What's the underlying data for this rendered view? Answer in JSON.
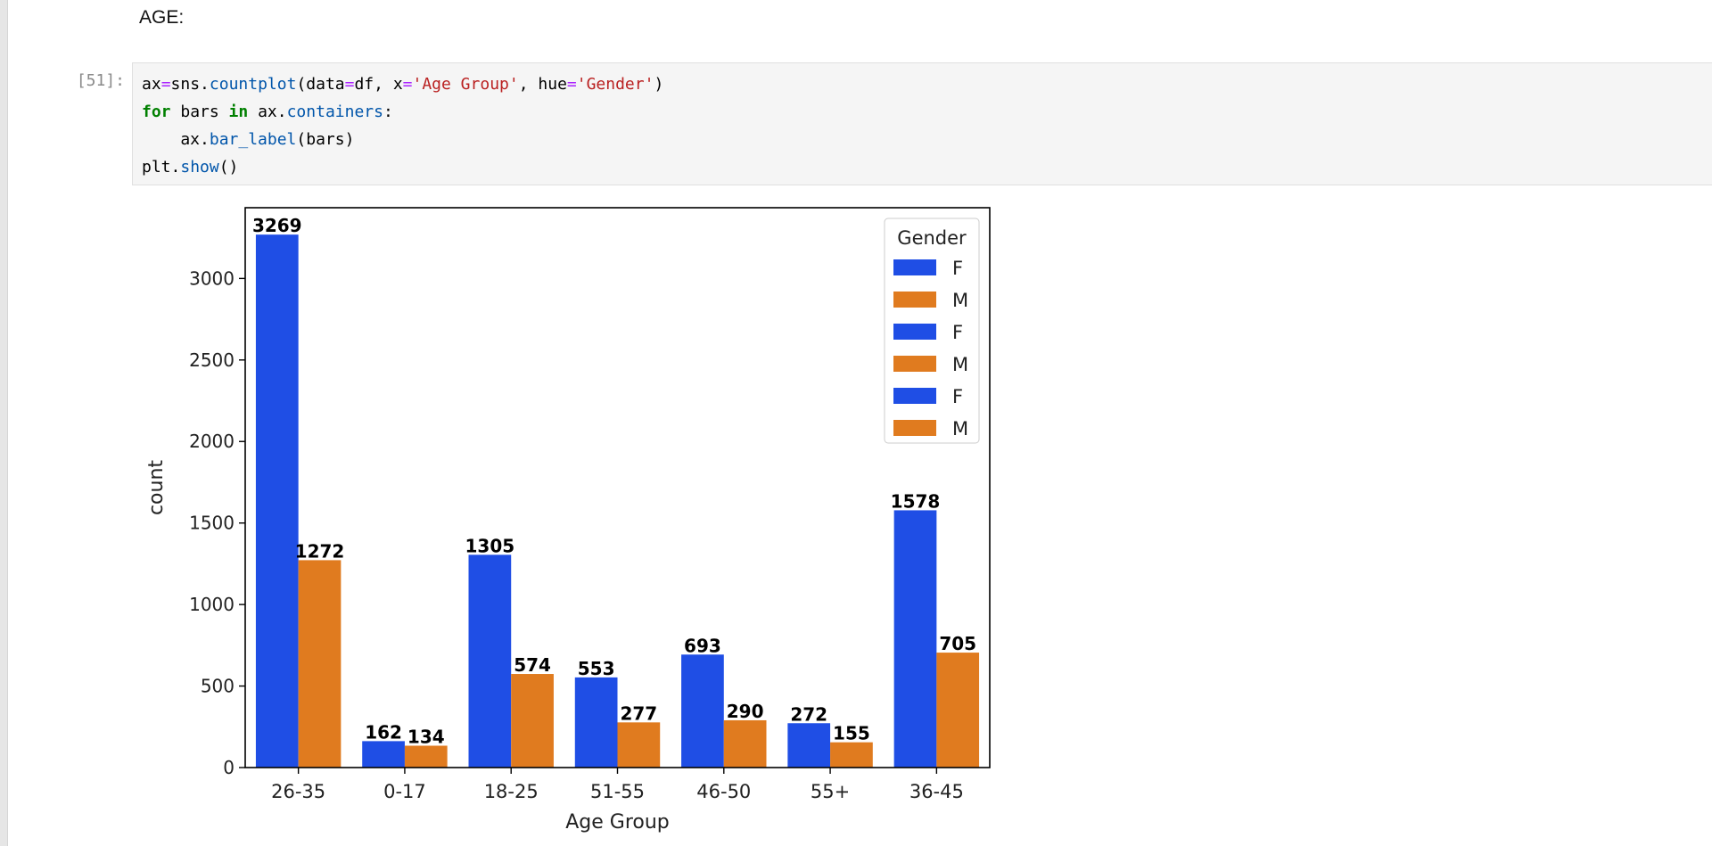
{
  "markdown": {
    "text": "AGE:"
  },
  "code_cell": {
    "prompt": "[51]:",
    "lines": [
      [
        {
          "t": "ax",
          "c": ""
        },
        {
          "t": "=",
          "c": "op"
        },
        {
          "t": "sns.",
          "c": ""
        },
        {
          "t": "countplot",
          "c": "fn"
        },
        {
          "t": "(data",
          "c": ""
        },
        {
          "t": "=",
          "c": "op"
        },
        {
          "t": "df, x",
          "c": ""
        },
        {
          "t": "=",
          "c": "op"
        },
        {
          "t": "'Age Group'",
          "c": "str"
        },
        {
          "t": ", hue",
          "c": ""
        },
        {
          "t": "=",
          "c": "op"
        },
        {
          "t": "'Gender'",
          "c": "str"
        },
        {
          "t": ")",
          "c": ""
        }
      ],
      [
        {
          "t": "for",
          "c": "kw"
        },
        {
          "t": " bars ",
          "c": ""
        },
        {
          "t": "in",
          "c": "kw"
        },
        {
          "t": " ax.",
          "c": ""
        },
        {
          "t": "containers",
          "c": "fn"
        },
        {
          "t": ":",
          "c": ""
        }
      ],
      [
        {
          "t": "    ax.",
          "c": ""
        },
        {
          "t": "bar_label",
          "c": "fn"
        },
        {
          "t": "(bars)",
          "c": ""
        }
      ],
      [
        {
          "t": "plt.",
          "c": ""
        },
        {
          "t": "show",
          "c": "fn"
        },
        {
          "t": "()",
          "c": ""
        }
      ]
    ]
  },
  "chart_data": {
    "type": "bar",
    "categories": [
      "26-35",
      "0-17",
      "18-25",
      "51-55",
      "46-50",
      "55+",
      "36-45"
    ],
    "series": [
      {
        "name": "F",
        "color": "#1f4ee5",
        "values": [
          3269,
          162,
          1305,
          553,
          693,
          272,
          1578
        ]
      },
      {
        "name": "M",
        "color": "#e07b1f",
        "values": [
          1272,
          134,
          574,
          277,
          290,
          155,
          705
        ]
      }
    ],
    "xlabel": "Age Group",
    "ylabel": "count",
    "ylim": [
      0,
      3434
    ],
    "yticks": [
      0,
      500,
      1000,
      1500,
      2000,
      2500,
      3000
    ],
    "legend": {
      "title": "Gender",
      "placement": "top-right",
      "entries": [
        {
          "label": "F",
          "color": "#1f4ee5"
        },
        {
          "label": "M",
          "color": "#e07b1f"
        },
        {
          "label": "F",
          "color": "#1f4ee5"
        },
        {
          "label": "M",
          "color": "#e07b1f"
        },
        {
          "label": "F",
          "color": "#1f4ee5"
        },
        {
          "label": "M",
          "color": "#e07b1f"
        }
      ]
    },
    "grid": false
  }
}
